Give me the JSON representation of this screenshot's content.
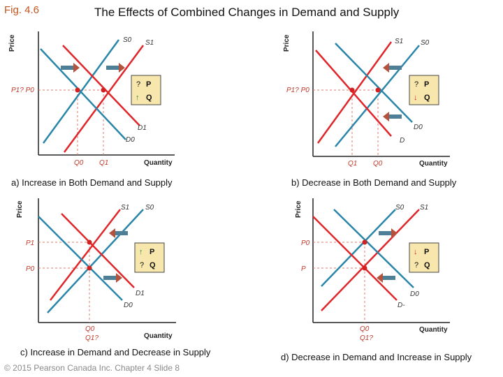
{
  "header": {
    "fig_label": "Fig. 4.6",
    "title": "The Effects of Combined Changes in Demand and Supply"
  },
  "footer": {
    "text": "© 2015 Pearson Canada Inc. Chapter 4 Slide 8"
  },
  "colors": {
    "supply": "#2a86a8",
    "demand": "#e0262a",
    "arrow": "#4e7f97",
    "arrow_head": "#b5523e",
    "up_arrow": "#2e8b3a",
    "down_arrow": "#d32020",
    "guide": "#e07a6a",
    "box_fill": "#f7e7ad"
  },
  "panels": [
    {
      "id": "a",
      "caption": "a) Increase in Both Demand and Supply",
      "axis": {
        "y": "Price",
        "x": "Quantity"
      },
      "supply_labels": [
        "S0",
        "S1"
      ],
      "demand_labels": [
        "D1",
        "D0"
      ],
      "price_label": "P1? P0",
      "quantity_labels": [
        "Q0",
        "Q1"
      ],
      "box": {
        "p_sign": "?",
        "p": "P",
        "q_sign": "↑",
        "q": "Q"
      }
    },
    {
      "id": "b",
      "caption": "b) Decrease in Both Demand and Supply",
      "axis": {
        "y": "Price",
        "x": "Quantity"
      },
      "supply_labels": [
        "S1",
        "S0"
      ],
      "demand_labels": [
        "D0",
        "D"
      ],
      "price_label": "P1? P0",
      "quantity_labels": [
        "Q1",
        "Q0"
      ],
      "box": {
        "p_sign": "?",
        "p": "P",
        "q_sign": "↓",
        "q": "Q"
      }
    },
    {
      "id": "c",
      "caption": "c) Increase in Demand and Decrease in Supply",
      "axis": {
        "y": "Price",
        "x": "Quantity"
      },
      "supply_labels": [
        "S1",
        "S0"
      ],
      "demand_labels": [
        "D1",
        "D0"
      ],
      "price_labels": [
        "P1",
        "P0"
      ],
      "quantity_labels": [
        "Q0",
        "Q1?"
      ],
      "box": {
        "p_sign": "↑",
        "p": "P",
        "q_sign": "?",
        "q": "Q"
      }
    },
    {
      "id": "d",
      "caption": "d) Decrease in Demand and Increase in Supply",
      "axis": {
        "y": "Price",
        "x": "Quantity"
      },
      "supply_labels": [
        "S0",
        "S1"
      ],
      "demand_labels": [
        "D0",
        "D-"
      ],
      "price_labels": [
        "P0",
        "P"
      ],
      "quantity_labels": [
        "Q0",
        "Q1?"
      ],
      "box": {
        "p_sign": "↓",
        "p": "P",
        "q_sign": "?",
        "q": "Q"
      }
    }
  ]
}
